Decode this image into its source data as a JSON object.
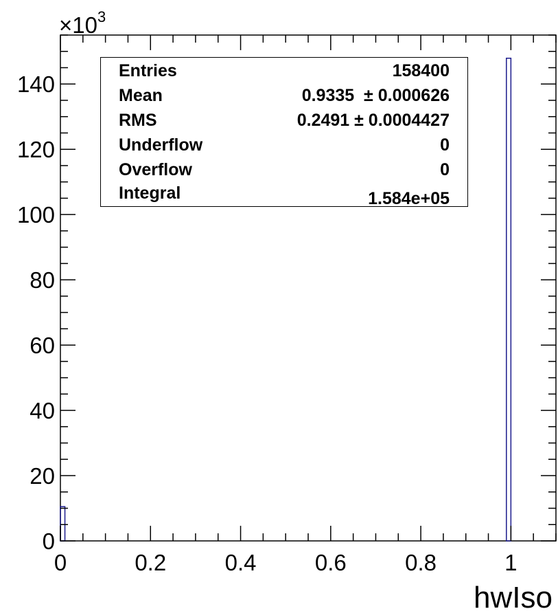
{
  "chart_data": {
    "type": "bar",
    "xlabel": "hwIso",
    "ylabel": "",
    "y_multiplier_base": "10",
    "y_multiplier_exponent": "3",
    "y_multiplier_prefix": "×",
    "xlim": [
      0,
      1.1
    ],
    "ylim": [
      0,
      155
    ],
    "x_ticks": [
      0,
      0.2,
      0.4,
      0.6,
      0.8,
      1
    ],
    "x_tick_labels": [
      "0",
      "0.2",
      "0.4",
      "0.6",
      "0.8",
      "1"
    ],
    "y_ticks": [
      0,
      20,
      40,
      60,
      80,
      100,
      120,
      140
    ],
    "y_tick_labels": [
      "0",
      "20",
      "40",
      "60",
      "80",
      "100",
      "120",
      "140"
    ],
    "bin_width": 0.01,
    "bins": [
      {
        "x_low": 0.0,
        "x_high": 0.01,
        "value": 10.5
      },
      {
        "x_low": 0.99,
        "x_high": 1.0,
        "value": 147.9
      }
    ],
    "line_color": "#1a1a8c",
    "stats": {
      "rows": [
        {
          "name": "Entries",
          "value": "158400"
        },
        {
          "name": "Mean",
          "value": "0.9335  ± 0.000626"
        },
        {
          "name": "RMS",
          "value": "0.2491 ± 0.0004427"
        },
        {
          "name": "Underflow",
          "value": "0"
        },
        {
          "name": "Overflow",
          "value": "0"
        },
        {
          "name": "Integral",
          "value": "1.584e+05"
        }
      ]
    }
  }
}
